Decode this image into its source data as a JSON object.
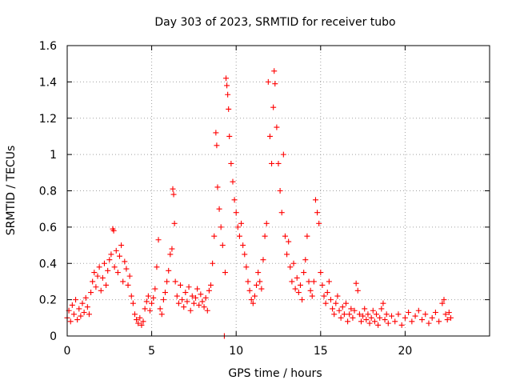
{
  "chart_data": {
    "type": "scatter",
    "title": "Day 303 of 2023, SRMTID for receiver tubo",
    "xlabel": "GPS time / hours",
    "ylabel": "SRMTID / TECUs",
    "xlim": [
      0,
      25
    ],
    "ylim": [
      0,
      1.6
    ],
    "xticks": [
      0,
      5,
      10,
      15,
      20
    ],
    "yticks": [
      0,
      0.2,
      0.4,
      0.6,
      0.8,
      1,
      1.2,
      1.4,
      1.6
    ],
    "ytick_labels": [
      "0",
      "0.2",
      "0.4",
      "0.6",
      "0.8",
      "1",
      "1.2",
      "1.4",
      "1.6"
    ],
    "grid": true,
    "marker": "+",
    "color": "#ff0000",
    "series": [
      {
        "name": "SRMTID",
        "points": [
          [
            0.0,
            0.1
          ],
          [
            0.1,
            0.14
          ],
          [
            0.2,
            0.08
          ],
          [
            0.3,
            0.17
          ],
          [
            0.4,
            0.12
          ],
          [
            0.5,
            0.2
          ],
          [
            0.6,
            0.09
          ],
          [
            0.7,
            0.15
          ],
          [
            0.8,
            0.11
          ],
          [
            0.9,
            0.18
          ],
          [
            1.0,
            0.13
          ],
          [
            1.1,
            0.21
          ],
          [
            1.2,
            0.16
          ],
          [
            1.3,
            0.12
          ],
          [
            1.4,
            0.24
          ],
          [
            1.5,
            0.3
          ],
          [
            1.6,
            0.35
          ],
          [
            1.7,
            0.27
          ],
          [
            1.8,
            0.33
          ],
          [
            1.9,
            0.38
          ],
          [
            2.0,
            0.25
          ],
          [
            2.1,
            0.32
          ],
          [
            2.2,
            0.4
          ],
          [
            2.3,
            0.28
          ],
          [
            2.4,
            0.36
          ],
          [
            2.5,
            0.42
          ],
          [
            2.6,
            0.45
          ],
          [
            2.7,
            0.59
          ],
          [
            2.75,
            0.58
          ],
          [
            2.8,
            0.38
          ],
          [
            2.9,
            0.47
          ],
          [
            3.0,
            0.35
          ],
          [
            3.1,
            0.44
          ],
          [
            3.2,
            0.5
          ],
          [
            3.3,
            0.3
          ],
          [
            3.4,
            0.41
          ],
          [
            3.5,
            0.37
          ],
          [
            3.6,
            0.28
          ],
          [
            3.7,
            0.33
          ],
          [
            3.8,
            0.22
          ],
          [
            3.9,
            0.18
          ],
          [
            4.0,
            0.12
          ],
          [
            4.1,
            0.09
          ],
          [
            4.2,
            0.07
          ],
          [
            4.3,
            0.1
          ],
          [
            4.4,
            0.06
          ],
          [
            4.5,
            0.08
          ],
          [
            4.6,
            0.15
          ],
          [
            4.7,
            0.19
          ],
          [
            4.8,
            0.22
          ],
          [
            4.9,
            0.14
          ],
          [
            5.0,
            0.18
          ],
          [
            5.1,
            0.21
          ],
          [
            5.2,
            0.26
          ],
          [
            5.3,
            0.38
          ],
          [
            5.4,
            0.53
          ],
          [
            5.5,
            0.15
          ],
          [
            5.6,
            0.12
          ],
          [
            5.7,
            0.2
          ],
          [
            5.8,
            0.24
          ],
          [
            5.9,
            0.3
          ],
          [
            6.0,
            0.36
          ],
          [
            6.1,
            0.45
          ],
          [
            6.2,
            0.48
          ],
          [
            6.25,
            0.81
          ],
          [
            6.3,
            0.78
          ],
          [
            6.35,
            0.62
          ],
          [
            6.4,
            0.3
          ],
          [
            6.5,
            0.22
          ],
          [
            6.6,
            0.18
          ],
          [
            6.7,
            0.28
          ],
          [
            6.8,
            0.2
          ],
          [
            6.9,
            0.16
          ],
          [
            7.0,
            0.24
          ],
          [
            7.1,
            0.19
          ],
          [
            7.2,
            0.27
          ],
          [
            7.3,
            0.14
          ],
          [
            7.4,
            0.22
          ],
          [
            7.5,
            0.18
          ],
          [
            7.6,
            0.21
          ],
          [
            7.7,
            0.26
          ],
          [
            7.8,
            0.17
          ],
          [
            7.9,
            0.23
          ],
          [
            8.0,
            0.19
          ],
          [
            8.1,
            0.16
          ],
          [
            8.2,
            0.21
          ],
          [
            8.3,
            0.14
          ],
          [
            8.4,
            0.25
          ],
          [
            8.5,
            0.28
          ],
          [
            8.6,
            0.4
          ],
          [
            8.7,
            0.55
          ],
          [
            8.8,
            1.12
          ],
          [
            8.85,
            1.05
          ],
          [
            8.9,
            0.82
          ],
          [
            9.0,
            0.7
          ],
          [
            9.1,
            0.6
          ],
          [
            9.2,
            0.5
          ],
          [
            9.3,
            0.0
          ],
          [
            9.35,
            0.35
          ],
          [
            9.4,
            1.42
          ],
          [
            9.45,
            1.38
          ],
          [
            9.5,
            1.33
          ],
          [
            9.55,
            1.25
          ],
          [
            9.6,
            1.1
          ],
          [
            9.7,
            0.95
          ],
          [
            9.8,
            0.85
          ],
          [
            9.9,
            0.75
          ],
          [
            10.0,
            0.68
          ],
          [
            10.1,
            0.6
          ],
          [
            10.2,
            0.55
          ],
          [
            10.3,
            0.62
          ],
          [
            10.4,
            0.5
          ],
          [
            10.5,
            0.45
          ],
          [
            10.6,
            0.38
          ],
          [
            10.7,
            0.3
          ],
          [
            10.8,
            0.25
          ],
          [
            10.9,
            0.2
          ],
          [
            11.0,
            0.18
          ],
          [
            11.1,
            0.22
          ],
          [
            11.2,
            0.28
          ],
          [
            11.3,
            0.35
          ],
          [
            11.4,
            0.3
          ],
          [
            11.5,
            0.26
          ],
          [
            11.6,
            0.42
          ],
          [
            11.7,
            0.55
          ],
          [
            11.8,
            0.62
          ],
          [
            11.9,
            1.4
          ],
          [
            12.0,
            1.1
          ],
          [
            12.1,
            0.95
          ],
          [
            12.2,
            1.26
          ],
          [
            12.25,
            1.46
          ],
          [
            12.3,
            1.39
          ],
          [
            12.4,
            1.15
          ],
          [
            12.5,
            0.95
          ],
          [
            12.6,
            0.8
          ],
          [
            12.7,
            0.68
          ],
          [
            12.8,
            1.0
          ],
          [
            12.9,
            0.55
          ],
          [
            13.0,
            0.45
          ],
          [
            13.1,
            0.52
          ],
          [
            13.2,
            0.38
          ],
          [
            13.3,
            0.3
          ],
          [
            13.4,
            0.4
          ],
          [
            13.5,
            0.26
          ],
          [
            13.6,
            0.32
          ],
          [
            13.7,
            0.24
          ],
          [
            13.8,
            0.28
          ],
          [
            13.9,
            0.2
          ],
          [
            14.0,
            0.35
          ],
          [
            14.1,
            0.42
          ],
          [
            14.2,
            0.55
          ],
          [
            14.3,
            0.3
          ],
          [
            14.4,
            0.25
          ],
          [
            14.5,
            0.22
          ],
          [
            14.6,
            0.3
          ],
          [
            14.7,
            0.75
          ],
          [
            14.8,
            0.68
          ],
          [
            14.9,
            0.62
          ],
          [
            15.0,
            0.35
          ],
          [
            15.1,
            0.28
          ],
          [
            15.2,
            0.22
          ],
          [
            15.3,
            0.18
          ],
          [
            15.4,
            0.24
          ],
          [
            15.5,
            0.3
          ],
          [
            15.6,
            0.2
          ],
          [
            15.7,
            0.15
          ],
          [
            15.8,
            0.12
          ],
          [
            15.9,
            0.18
          ],
          [
            16.0,
            0.22
          ],
          [
            16.1,
            0.14
          ],
          [
            16.2,
            0.1
          ],
          [
            16.3,
            0.16
          ],
          [
            16.4,
            0.12
          ],
          [
            16.5,
            0.18
          ],
          [
            16.6,
            0.08
          ],
          [
            16.7,
            0.12
          ],
          [
            16.8,
            0.15
          ],
          [
            16.9,
            0.1
          ],
          [
            17.0,
            0.14
          ],
          [
            17.1,
            0.29
          ],
          [
            17.2,
            0.25
          ],
          [
            17.3,
            0.12
          ],
          [
            17.4,
            0.08
          ],
          [
            17.5,
            0.11
          ],
          [
            17.6,
            0.15
          ],
          [
            17.7,
            0.09
          ],
          [
            17.8,
            0.12
          ],
          [
            17.9,
            0.07
          ],
          [
            18.0,
            0.1
          ],
          [
            18.1,
            0.14
          ],
          [
            18.2,
            0.08
          ],
          [
            18.3,
            0.12
          ],
          [
            18.4,
            0.06
          ],
          [
            18.5,
            0.1
          ],
          [
            18.6,
            0.15
          ],
          [
            18.7,
            0.18
          ],
          [
            18.8,
            0.09
          ],
          [
            18.9,
            0.12
          ],
          [
            19.0,
            0.07
          ],
          [
            19.2,
            0.11
          ],
          [
            19.4,
            0.08
          ],
          [
            19.6,
            0.12
          ],
          [
            19.8,
            0.06
          ],
          [
            20.0,
            0.1
          ],
          [
            20.2,
            0.13
          ],
          [
            20.4,
            0.08
          ],
          [
            20.6,
            0.11
          ],
          [
            20.8,
            0.14
          ],
          [
            21.0,
            0.09
          ],
          [
            21.2,
            0.12
          ],
          [
            21.4,
            0.07
          ],
          [
            21.6,
            0.1
          ],
          [
            21.8,
            0.13
          ],
          [
            22.0,
            0.08
          ],
          [
            22.2,
            0.18
          ],
          [
            22.3,
            0.2
          ],
          [
            22.4,
            0.12
          ],
          [
            22.5,
            0.09
          ],
          [
            22.6,
            0.13
          ],
          [
            22.7,
            0.1
          ]
        ]
      }
    ]
  }
}
